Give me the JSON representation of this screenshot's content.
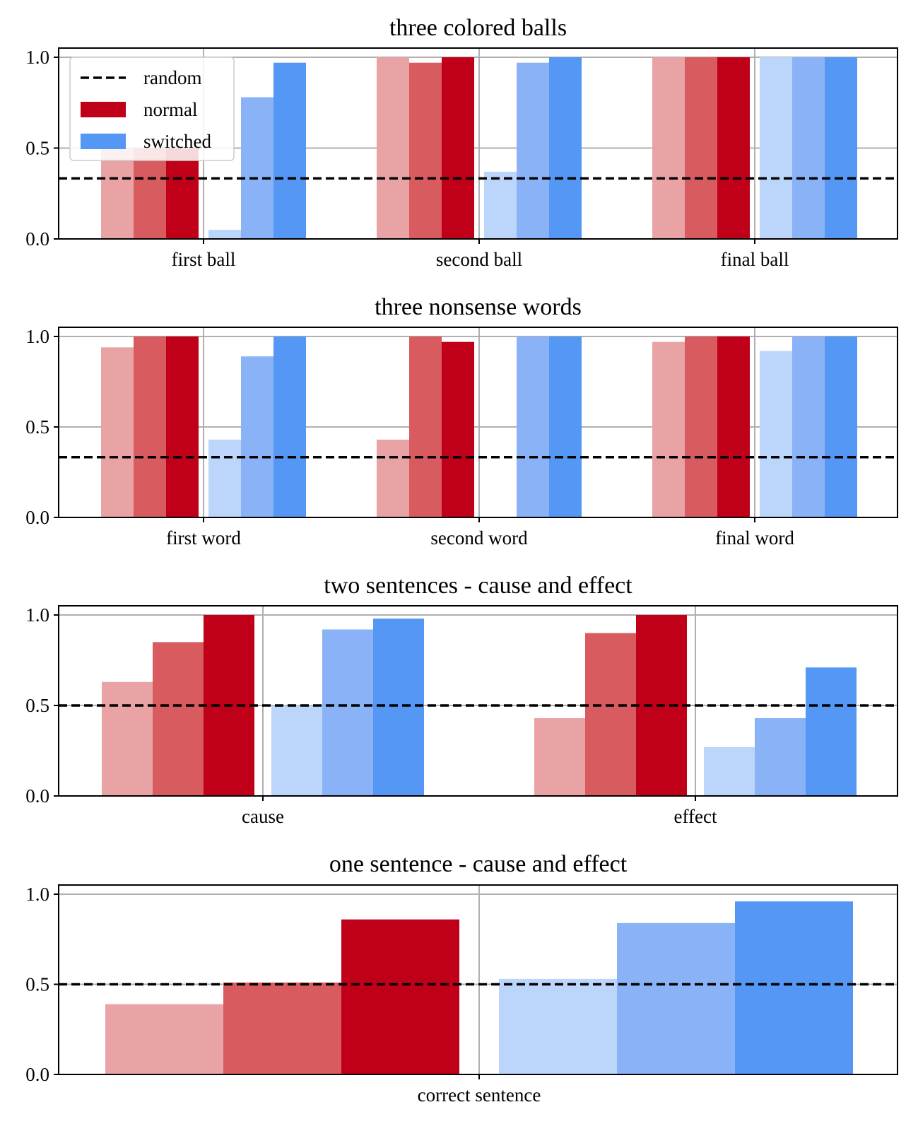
{
  "chart_data": [
    {
      "type": "bar",
      "title": "three colored balls",
      "categories": [
        "first ball",
        "second ball",
        "final ball"
      ],
      "random": 0.333,
      "ylim": [
        0,
        1.05
      ],
      "yticks": [
        "0.0",
        "0.5",
        "1.0"
      ],
      "grid": true,
      "legend_position": "top-left",
      "series": [
        {
          "group": "normal",
          "shade": 0,
          "values": [
            0.5,
            1.0,
            1.0
          ]
        },
        {
          "group": "normal",
          "shade": 1,
          "values": [
            0.5,
            0.97,
            1.0
          ]
        },
        {
          "group": "normal",
          "shade": 2,
          "values": [
            0.5,
            1.0,
            1.0
          ]
        },
        {
          "group": "switched",
          "shade": 0,
          "values": [
            0.05,
            0.37,
            1.0
          ]
        },
        {
          "group": "switched",
          "shade": 1,
          "values": [
            0.78,
            0.97,
            1.0
          ]
        },
        {
          "group": "switched",
          "shade": 2,
          "values": [
            0.97,
            1.0,
            1.0
          ]
        }
      ]
    },
    {
      "type": "bar",
      "title": "three nonsense words",
      "categories": [
        "first word",
        "second word",
        "final word"
      ],
      "random": 0.333,
      "ylim": [
        0,
        1.05
      ],
      "yticks": [
        "0.0",
        "0.5",
        "1.0"
      ],
      "grid": true,
      "series": [
        {
          "group": "normal",
          "shade": 0,
          "values": [
            0.94,
            0.43,
            0.97
          ]
        },
        {
          "group": "normal",
          "shade": 1,
          "values": [
            1.0,
            1.0,
            1.0
          ]
        },
        {
          "group": "normal",
          "shade": 2,
          "values": [
            1.0,
            0.97,
            1.0
          ]
        },
        {
          "group": "switched",
          "shade": 0,
          "values": [
            0.43,
            0.0,
            0.92
          ]
        },
        {
          "group": "switched",
          "shade": 1,
          "values": [
            0.89,
            1.0,
            1.0
          ]
        },
        {
          "group": "switched",
          "shade": 2,
          "values": [
            1.0,
            1.0,
            1.0
          ]
        }
      ]
    },
    {
      "type": "bar",
      "title": "two sentences - cause and effect",
      "categories": [
        "cause",
        "effect"
      ],
      "random": 0.5,
      "ylim": [
        0,
        1.05
      ],
      "yticks": [
        "0.0",
        "0.5",
        "1.0"
      ],
      "grid": true,
      "series": [
        {
          "group": "normal",
          "shade": 0,
          "values": [
            0.63,
            0.43
          ]
        },
        {
          "group": "normal",
          "shade": 1,
          "values": [
            0.85,
            0.9
          ]
        },
        {
          "group": "normal",
          "shade": 2,
          "values": [
            1.0,
            1.0
          ]
        },
        {
          "group": "switched",
          "shade": 0,
          "values": [
            0.5,
            0.27
          ]
        },
        {
          "group": "switched",
          "shade": 1,
          "values": [
            0.92,
            0.43
          ]
        },
        {
          "group": "switched",
          "shade": 2,
          "values": [
            0.98,
            0.71
          ]
        }
      ]
    },
    {
      "type": "bar",
      "title": "one sentence - cause and effect",
      "categories": [
        "correct sentence"
      ],
      "random": 0.5,
      "ylim": [
        0,
        1.05
      ],
      "yticks": [
        "0.0",
        "0.5",
        "1.0"
      ],
      "grid": true,
      "series": [
        {
          "group": "normal",
          "shade": 0,
          "values": [
            0.39
          ]
        },
        {
          "group": "normal",
          "shade": 1,
          "values": [
            0.51
          ]
        },
        {
          "group": "normal",
          "shade": 2,
          "values": [
            0.86
          ]
        },
        {
          "group": "switched",
          "shade": 0,
          "values": [
            0.53
          ]
        },
        {
          "group": "switched",
          "shade": 1,
          "values": [
            0.84
          ]
        },
        {
          "group": "switched",
          "shade": 2,
          "values": [
            0.96
          ]
        }
      ]
    }
  ],
  "legend": [
    {
      "key": "random",
      "label": "random",
      "style": "dashed"
    },
    {
      "key": "normal",
      "label": "normal",
      "style": "bar"
    },
    {
      "key": "switched",
      "label": "switched",
      "style": "bar"
    }
  ],
  "colors": {
    "normal": [
      "#e9a3a5",
      "#d75b5f",
      "#c00018"
    ],
    "switched": [
      "#bcd6fb",
      "#89b3f6",
      "#5497f4"
    ],
    "random_line": "#000000",
    "grid": "#b0b0b0",
    "axis": "#000000"
  }
}
